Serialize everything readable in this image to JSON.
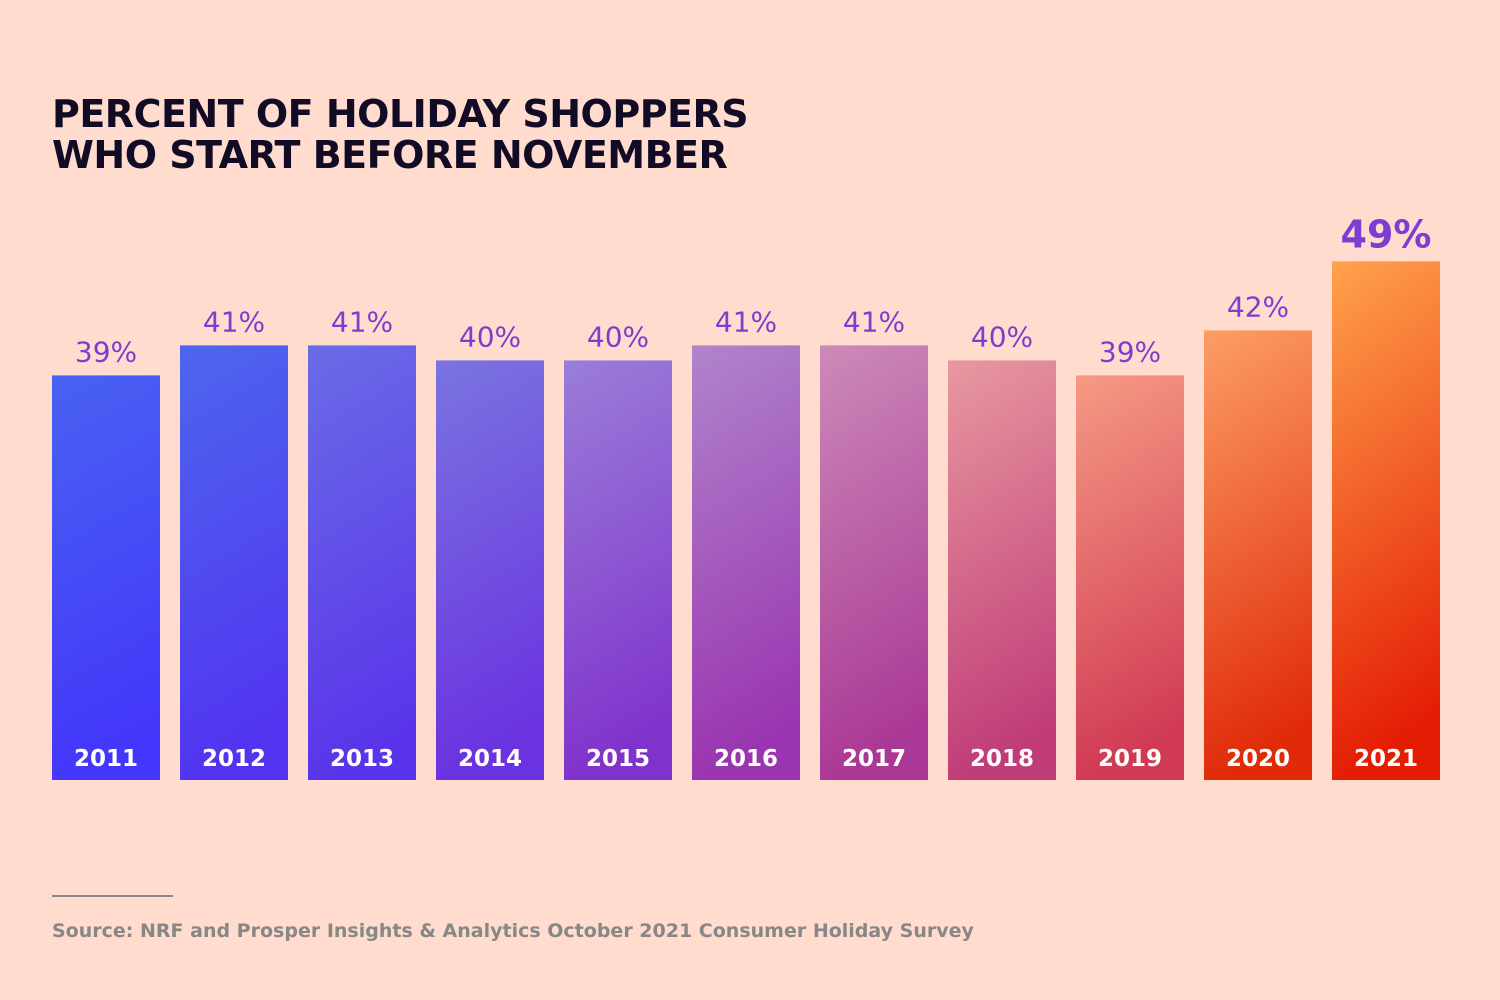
{
  "chart_data": {
    "type": "bar",
    "title_lines": [
      "PERCENT OF HOLIDAY SHOPPERS",
      "WHO START BEFORE NOVEMBER"
    ],
    "categories": [
      "2011",
      "2012",
      "2013",
      "2014",
      "2015",
      "2016",
      "2017",
      "2018",
      "2019",
      "2020",
      "2021"
    ],
    "values": [
      39,
      41,
      41,
      40,
      40,
      41,
      41,
      40,
      39,
      42,
      49
    ],
    "value_labels": [
      "39%",
      "41%",
      "41%",
      "40%",
      "40%",
      "41%",
      "41%",
      "40%",
      "39%",
      "42%",
      "49%"
    ],
    "xlabel": "",
    "ylabel": "",
    "grid": false,
    "legend": "none",
    "colors": {
      "label": "#7a3fd0",
      "year_label": "#ffffff",
      "bar_top": [
        "#4862f2",
        "#4d66ee",
        "#6a6ce6",
        "#7a74e0",
        "#9a7ed8",
        "#b084cc",
        "#cc8ab8",
        "#e898a0",
        "#f69a84",
        "#fc9e66",
        "#ffa24c"
      ],
      "bar_bottom": [
        "#4436fa",
        "#5234f0",
        "#5a34ea",
        "#6a32e0",
        "#8032cc",
        "#9a34b0",
        "#aa3896",
        "#c03c78",
        "#d03a54",
        "#e02a08",
        "#e41c04"
      ]
    }
  },
  "source": "Source: NRF and Prosper Insights & Analytics October 2021 Consumer Holiday Survey"
}
